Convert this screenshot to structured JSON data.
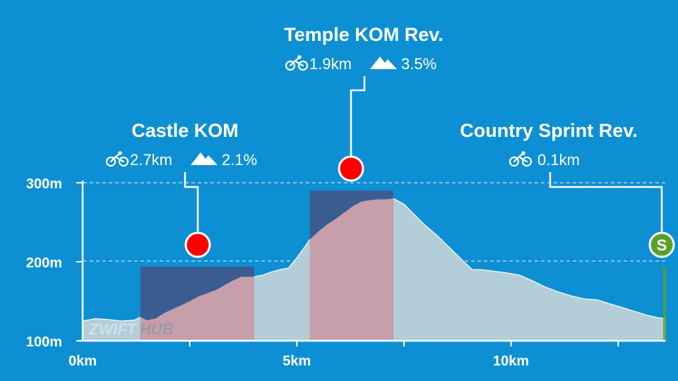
{
  "chart_data": {
    "type": "area",
    "title": "",
    "xlabel": "",
    "ylabel": "",
    "xlim": [
      0,
      13.6
    ],
    "ylim": [
      100,
      300
    ],
    "x_ticks": [
      0,
      2.5,
      5,
      7.5,
      10,
      12.5
    ],
    "x_tick_labels": [
      {
        "value": 0,
        "label": "0km"
      },
      {
        "value": 5,
        "label": "5km"
      },
      {
        "value": 10,
        "label": "10km"
      }
    ],
    "y_ticks": [
      {
        "value": 100,
        "label": "100m"
      },
      {
        "value": 200,
        "label": "200m"
      },
      {
        "value": 300,
        "label": "300m"
      }
    ],
    "elevation": {
      "x": [
        0,
        0.3,
        0.6,
        0.9,
        1.2,
        1.35,
        1.5,
        1.7,
        1.9,
        2.1,
        2.3,
        2.5,
        2.7,
        2.9,
        3.1,
        3.3,
        3.5,
        3.7,
        3.8,
        4.0,
        4.2,
        4.4,
        4.6,
        4.8,
        5.0,
        5.2,
        5.3,
        5.5,
        5.7,
        5.9,
        6.1,
        6.3,
        6.5,
        6.7,
        6.9,
        7.1,
        7.25,
        7.5,
        7.7,
        8.0,
        8.3,
        8.6,
        8.9,
        9.1,
        9.3,
        9.6,
        9.9,
        10.2,
        10.5,
        10.8,
        11.1,
        11.4,
        11.7,
        12.0,
        12.3,
        12.6,
        12.9,
        13.2,
        13.45,
        13.6
      ],
      "y": [
        125,
        128,
        127,
        125,
        126,
        130,
        126,
        128,
        135,
        140,
        145,
        150,
        156,
        160,
        164,
        170,
        176,
        181,
        181,
        181,
        183,
        187,
        190,
        192,
        205,
        220,
        228,
        238,
        247,
        254,
        262,
        270,
        276,
        278,
        279,
        279,
        280,
        273,
        262,
        246,
        232,
        216,
        200,
        190,
        190,
        188,
        186,
        183,
        176,
        168,
        162,
        157,
        153,
        152,
        147,
        142,
        137,
        132,
        129,
        128
      ]
    },
    "segments": [
      {
        "name": "Castle KOM",
        "distance": "2.7km",
        "grade": "2.1%",
        "start_km": 1.35,
        "end_km": 4.0,
        "box_top_m": 194,
        "marker_km": 2.7,
        "marker_m": 220,
        "kind": "kom"
      },
      {
        "name": "Temple KOM Rev.",
        "distance": "1.9km",
        "grade": "3.5%",
        "start_km": 5.3,
        "end_km": 7.25,
        "box_top_m": 290,
        "marker_km": 6.3,
        "marker_m": 322,
        "kind": "kom"
      },
      {
        "name": "Country Sprint Rev.",
        "distance": "0.1km",
        "grade": "",
        "start_km": 13.55,
        "end_km": 13.6,
        "box_top_m": 195,
        "marker_km": 13.55,
        "marker_m": 220,
        "kind": "sprint"
      }
    ],
    "legend": "none",
    "grid": "dashed horizontal at 200m and 300m"
  },
  "labels": {
    "castle": {
      "title": "Castle KOM",
      "distance": "2.7km",
      "grade": "2.1%"
    },
    "temple": {
      "title": "Temple KOM Rev.",
      "distance": "1.9km",
      "grade": "3.5%"
    },
    "sprint": {
      "title": "Country Sprint Rev.",
      "distance": "0.1km",
      "badge": "S"
    }
  },
  "watermark": {
    "left": "ZWIFT",
    "right": "HUB"
  },
  "colors": {
    "background": "#0d8fd3",
    "profile_fill": "#b3ced8",
    "segment_profile_fill": "#c79fab",
    "segment_box": "#3b5c91",
    "marker_red": "#ff0000",
    "sprint_green": "#5aa02c",
    "grid": "#a9d4ee"
  }
}
